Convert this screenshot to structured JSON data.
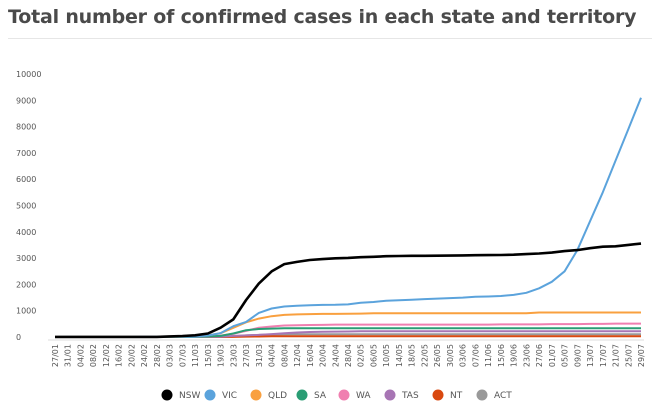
{
  "chart_data": {
    "type": "line",
    "title": "Total number of confirmed cases in each state and territory",
    "xlabel": "",
    "ylabel": "",
    "ylim": [
      0,
      10000
    ],
    "yticks": [
      0,
      1000,
      2000,
      3000,
      4000,
      5000,
      6000,
      7000,
      8000,
      9000,
      10000
    ],
    "grid": false,
    "legend_position": "bottom",
    "x": [
      "27/01",
      "31/01",
      "04/02",
      "08/02",
      "12/02",
      "16/02",
      "20/02",
      "24/02",
      "28/02",
      "03/03",
      "07/03",
      "11/03",
      "15/03",
      "19/03",
      "23/03",
      "27/03",
      "31/03",
      "04/04",
      "08/04",
      "12/04",
      "16/04",
      "20/04",
      "24/04",
      "28/04",
      "02/05",
      "06/05",
      "10/05",
      "14/05",
      "18/05",
      "22/05",
      "26/05",
      "30/05",
      "03/06",
      "07/06",
      "11/06",
      "15/06",
      "19/06",
      "23/06",
      "27/06",
      "01/07",
      "05/07",
      "09/07",
      "13/07",
      "17/07",
      "21/07",
      "25/07",
      "29/07"
    ],
    "series": [
      {
        "name": "NSW",
        "color": "#000000",
        "values": [
          4,
          4,
          4,
          4,
          4,
          4,
          4,
          4,
          4,
          22,
          38,
          65,
          134,
          353,
          669,
          1405,
          2032,
          2493,
          2773,
          2857,
          2926,
          2963,
          2994,
          3009,
          3035,
          3050,
          3071,
          3081,
          3088,
          3089,
          3092,
          3095,
          3104,
          3110,
          3114,
          3119,
          3131,
          3151,
          3174,
          3211,
          3268,
          3304,
          3375,
          3433,
          3450,
          3500,
          3550
        ]
      },
      {
        "name": "VIC",
        "color": "#5ba3dc",
        "values": [
          1,
          2,
          4,
          4,
          4,
          4,
          4,
          7,
          9,
          10,
          11,
          15,
          57,
          150,
          411,
          574,
          917,
          1085,
          1158,
          1191,
          1210,
          1220,
          1225,
          1240,
          1300,
          1330,
          1380,
          1400,
          1420,
          1440,
          1460,
          1480,
          1500,
          1530,
          1540,
          1560,
          1600,
          1680,
          1850,
          2100,
          2500,
          3300,
          4400,
          5500,
          6700,
          7900,
          9100
        ]
      },
      {
        "name": "QLD",
        "color": "#f9a03f",
        "values": [
          0,
          0,
          5,
          5,
          5,
          5,
          5,
          5,
          5,
          9,
          13,
          27,
          61,
          144,
          350,
          560,
          700,
          790,
          840,
          860,
          870,
          880,
          880,
          885,
          890,
          900,
          900,
          900,
          900,
          900,
          900,
          900,
          900,
          900,
          900,
          900,
          900,
          900,
          930,
          930,
          930,
          930,
          930,
          930,
          930,
          930,
          930
        ]
      },
      {
        "name": "SA",
        "color": "#2a9d74",
        "values": [
          0,
          0,
          0,
          0,
          0,
          0,
          0,
          0,
          0,
          0,
          1,
          3,
          20,
          42,
          134,
          257,
          305,
          320,
          330,
          330,
          330,
          330,
          330,
          330,
          330,
          330,
          330,
          330,
          330,
          330,
          330,
          330,
          330,
          330,
          330,
          330,
          330,
          330,
          330,
          330,
          330,
          330,
          330,
          330,
          330,
          330,
          330
        ]
      },
      {
        "name": "WA",
        "color": "#f07fb0",
        "values": [
          0,
          0,
          0,
          0,
          0,
          0,
          0,
          0,
          0,
          0,
          0,
          1,
          17,
          52,
          120,
          231,
          355,
          400,
          436,
          450,
          455,
          460,
          470,
          470,
          470,
          470,
          470,
          470,
          470,
          470,
          470,
          470,
          470,
          470,
          470,
          480,
          480,
          480,
          480,
          490,
          490,
          490,
          500,
          500,
          510,
          510,
          510
        ]
      },
      {
        "name": "TAS",
        "color": "#a775b4",
        "values": [
          0,
          0,
          0,
          0,
          0,
          0,
          0,
          0,
          0,
          0,
          0,
          0,
          5,
          10,
          40,
          60,
          80,
          110,
          140,
          170,
          190,
          200,
          205,
          210,
          220,
          220,
          220,
          220,
          220,
          220,
          220,
          220,
          220,
          220,
          220,
          220,
          220,
          220,
          220,
          220,
          220,
          220,
          220,
          220,
          220,
          220,
          220
        ]
      },
      {
        "name": "NT",
        "color": "#d9480f",
        "values": [
          0,
          0,
          0,
          0,
          0,
          0,
          0,
          0,
          0,
          0,
          0,
          0,
          0,
          1,
          5,
          15,
          20,
          28,
          28,
          28,
          28,
          28,
          28,
          28,
          29,
          29,
          29,
          29,
          29,
          29,
          29,
          29,
          29,
          29,
          29,
          29,
          29,
          29,
          29,
          29,
          29,
          29,
          29,
          29,
          29,
          29,
          29
        ]
      },
      {
        "name": "ACT",
        "color": "#999999",
        "values": [
          0,
          0,
          0,
          0,
          0,
          0,
          0,
          0,
          0,
          0,
          0,
          0,
          1,
          6,
          20,
          62,
          80,
          96,
          100,
          103,
          105,
          106,
          106,
          106,
          106,
          106,
          106,
          106,
          106,
          106,
          106,
          106,
          106,
          106,
          106,
          106,
          106,
          106,
          106,
          106,
          106,
          106,
          106,
          106,
          106,
          106,
          106
        ]
      }
    ]
  }
}
